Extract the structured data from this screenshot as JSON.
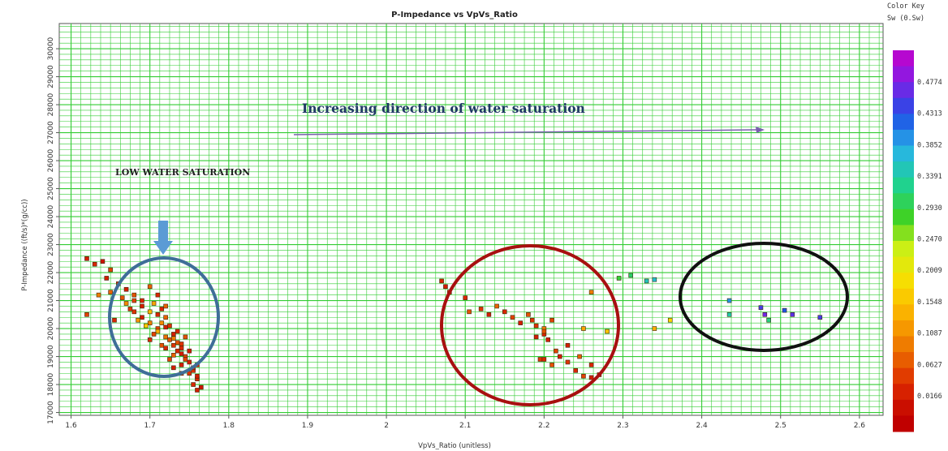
{
  "chart_data": {
    "type": "scatter",
    "title": "P-Impedance vs VpVs_Ratio",
    "xlabel": "VpVs_Ratio (unitless)",
    "ylabel": "P-Impedance ((ft/s)*(g/cc))",
    "xlim": [
      1.585,
      2.63
    ],
    "ylim": [
      16900,
      30900
    ],
    "x_ticks": [
      "1.6",
      "1.7",
      "1.8",
      "1.9",
      "2",
      "2.1",
      "2.2",
      "2.3",
      "2.4",
      "2.5",
      "2.6"
    ],
    "y_ticks": [
      "17000",
      "18000",
      "19000",
      "20000",
      "21000",
      "22000",
      "23000",
      "24000",
      "25000",
      "26000",
      "27000",
      "28000",
      "29000",
      "30000"
    ],
    "grid": true,
    "color_key": {
      "title": "Color Key",
      "subtitle": "Sw (0.Sw)",
      "labels": [
        "0.4774",
        "0.4313",
        "0.3852",
        "0.3391",
        "0.2930",
        "0.2470",
        "0.2009",
        "0.1548",
        "0.1087",
        "0.0627",
        "0.0166"
      ]
    },
    "annotations": {
      "direction": "Increasing direction of water saturation",
      "low": "LOW WATER SATURATION"
    },
    "colors": {
      "background": "#ffffff",
      "grid": "#33cc33",
      "arrow": "#7a5fae",
      "blue_ellipse": "#3f6e98",
      "red_ellipse": "#a81010",
      "black_ellipse": "#111111",
      "down_arrow": "#5b9bd5"
    },
    "points": [
      [
        1.62,
        22500,
        0.05
      ],
      [
        1.63,
        22300,
        0.06
      ],
      [
        1.64,
        22400,
        0.04
      ],
      [
        1.65,
        22100,
        0.08
      ],
      [
        1.645,
        21800,
        0.05
      ],
      [
        1.66,
        21600,
        0.07
      ],
      [
        1.67,
        21400,
        0.05
      ],
      [
        1.68,
        21200,
        0.09
      ],
      [
        1.69,
        21000,
        0.06
      ],
      [
        1.65,
        21300,
        0.1
      ],
      [
        1.635,
        21200,
        0.12
      ],
      [
        1.62,
        20500,
        0.08
      ],
      [
        1.655,
        20300,
        0.06
      ],
      [
        1.7,
        21500,
        0.1
      ],
      [
        1.67,
        20900,
        0.13
      ],
      [
        1.68,
        20600,
        0.07
      ],
      [
        1.69,
        20400,
        0.05
      ],
      [
        1.7,
        20200,
        0.12
      ],
      [
        1.71,
        20000,
        0.08
      ],
      [
        1.705,
        20900,
        0.15
      ],
      [
        1.715,
        20700,
        0.06
      ],
      [
        1.72,
        20400,
        0.1
      ],
      [
        1.725,
        20100,
        0.07
      ],
      [
        1.73,
        19800,
        0.05
      ],
      [
        1.735,
        19500,
        0.09
      ],
      [
        1.74,
        19300,
        0.06
      ],
      [
        1.745,
        19000,
        0.08
      ],
      [
        1.75,
        18800,
        0.05
      ],
      [
        1.755,
        18500,
        0.07
      ],
      [
        1.76,
        18200,
        0.06
      ],
      [
        1.765,
        17900,
        0.04
      ],
      [
        1.71,
        19900,
        0.16
      ],
      [
        1.72,
        19700,
        0.11
      ],
      [
        1.73,
        19400,
        0.07
      ],
      [
        1.74,
        19100,
        0.05
      ],
      [
        1.725,
        19600,
        0.09
      ],
      [
        1.735,
        19200,
        0.06
      ],
      [
        1.745,
        18900,
        0.08
      ],
      [
        1.755,
        18600,
        0.06
      ],
      [
        1.7,
        20600,
        0.17
      ],
      [
        1.69,
        20800,
        0.05
      ],
      [
        1.715,
        20200,
        0.13
      ],
      [
        1.705,
        19800,
        0.08
      ],
      [
        1.72,
        19300,
        0.06
      ],
      [
        1.73,
        19050,
        0.1
      ],
      [
        1.74,
        18700,
        0.05
      ],
      [
        1.75,
        18400,
        0.07
      ],
      [
        1.76,
        18300,
        0.05
      ],
      [
        1.68,
        21000,
        0.08
      ],
      [
        1.695,
        20100,
        0.19
      ],
      [
        1.71,
        20500,
        0.06
      ],
      [
        1.72,
        20050,
        0.05
      ],
      [
        1.73,
        19650,
        0.12
      ],
      [
        1.74,
        19450,
        0.07
      ],
      [
        1.75,
        19200,
        0.05
      ],
      [
        1.745,
        19700,
        0.09
      ],
      [
        1.735,
        19900,
        0.06
      ],
      [
        1.725,
        18900,
        0.08
      ],
      [
        1.76,
        18700,
        0.06
      ],
      [
        1.665,
        21100,
        0.09
      ],
      [
        1.675,
        20700,
        0.07
      ],
      [
        1.685,
        20300,
        0.14
      ],
      [
        1.7,
        19600,
        0.06
      ],
      [
        1.715,
        19400,
        0.09
      ],
      [
        1.73,
        18600,
        0.05
      ],
      [
        1.74,
        18400,
        0.08
      ],
      [
        1.755,
        18000,
        0.06
      ],
      [
        1.76,
        17800,
        0.05
      ],
      [
        1.72,
        20800,
        0.1
      ],
      [
        1.71,
        21200,
        0.06
      ],
      [
        2.07,
        21700,
        0.06
      ],
      [
        2.075,
        21500,
        0.05
      ],
      [
        2.08,
        21300,
        0.08
      ],
      [
        2.1,
        21100,
        0.06
      ],
      [
        2.105,
        20600,
        0.09
      ],
      [
        2.12,
        20700,
        0.07
      ],
      [
        2.13,
        20500,
        0.05
      ],
      [
        2.14,
        20800,
        0.1
      ],
      [
        2.15,
        20600,
        0.06
      ],
      [
        2.16,
        20400,
        0.08
      ],
      [
        2.17,
        20200,
        0.05
      ],
      [
        2.18,
        20500,
        0.09
      ],
      [
        2.19,
        20100,
        0.07
      ],
      [
        2.2,
        20000,
        0.12
      ],
      [
        2.2,
        19800,
        0.06
      ],
      [
        2.21,
        20300,
        0.08
      ],
      [
        2.205,
        19600,
        0.05
      ],
      [
        2.195,
        18900,
        0.07
      ],
      [
        2.2,
        18900,
        0.06
      ],
      [
        2.21,
        18700,
        0.09
      ],
      [
        2.22,
        19000,
        0.05
      ],
      [
        2.23,
        18800,
        0.07
      ],
      [
        2.24,
        18500,
        0.06
      ],
      [
        2.25,
        18300,
        0.08
      ],
      [
        2.26,
        18250,
        0.05
      ],
      [
        2.245,
        19000,
        0.1
      ],
      [
        2.26,
        18700,
        0.06
      ],
      [
        2.215,
        19200,
        0.08
      ],
      [
        2.23,
        19400,
        0.05
      ],
      [
        2.26,
        21300,
        0.12
      ],
      [
        2.25,
        20000,
        0.15
      ],
      [
        2.2,
        19900,
        0.09
      ],
      [
        2.185,
        20300,
        0.07
      ],
      [
        2.19,
        19700,
        0.05
      ],
      [
        2.27,
        18350,
        0.06
      ],
      [
        2.28,
        19900,
        0.18
      ],
      [
        2.34,
        20000,
        0.16
      ],
      [
        2.36,
        20300,
        0.2
      ],
      [
        2.295,
        21800,
        0.3
      ],
      [
        2.31,
        21900,
        0.32
      ],
      [
        2.33,
        21700,
        0.36
      ],
      [
        2.34,
        21750,
        0.37
      ],
      [
        2.435,
        21000,
        0.4
      ],
      [
        2.435,
        20500,
        0.35
      ],
      [
        2.475,
        20750,
        0.45
      ],
      [
        2.48,
        20500,
        0.47
      ],
      [
        2.485,
        20300,
        0.33
      ],
      [
        2.505,
        20650,
        0.43
      ],
      [
        2.515,
        20500,
        0.46
      ],
      [
        2.55,
        20400,
        0.45
      ]
    ]
  }
}
